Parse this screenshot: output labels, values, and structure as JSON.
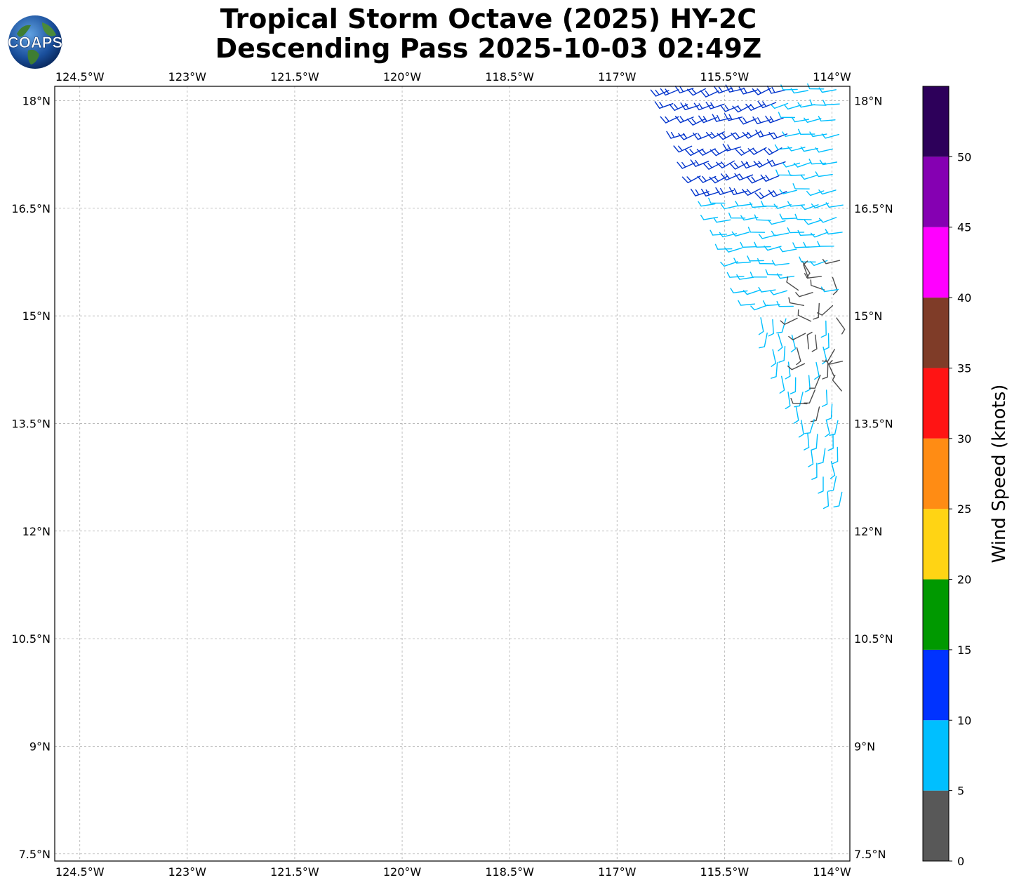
{
  "title_line1": "Tropical Storm Octave (2025) HY-2C",
  "title_line2": "Descending Pass 2025-10-03 02:49Z",
  "logo": {
    "text": "COAPS",
    "icon": "globe-icon"
  },
  "map": {
    "lon_range": [
      -124.85,
      -113.75
    ],
    "lat_range": [
      7.4,
      18.2
    ],
    "grid": true,
    "grid_style": "dashed",
    "lon_ticks": [
      {
        "value": -124.5,
        "label": "124.5°W"
      },
      {
        "value": -123.0,
        "label": "123°W"
      },
      {
        "value": -121.5,
        "label": "121.5°W"
      },
      {
        "value": -120.0,
        "label": "120°W"
      },
      {
        "value": -118.5,
        "label": "118.5°W"
      },
      {
        "value": -117.0,
        "label": "117°W"
      },
      {
        "value": -115.5,
        "label": "115.5°W"
      },
      {
        "value": -114.0,
        "label": "114°W"
      }
    ],
    "lat_ticks": [
      {
        "value": 18.0,
        "label": "18°N"
      },
      {
        "value": 16.5,
        "label": "16.5°N"
      },
      {
        "value": 15.0,
        "label": "15°N"
      },
      {
        "value": 13.5,
        "label": "13.5°N"
      },
      {
        "value": 12.0,
        "label": "12°N"
      },
      {
        "value": 10.5,
        "label": "10.5°N"
      },
      {
        "value": 9.0,
        "label": "9°N"
      },
      {
        "value": 7.5,
        "label": "7.5°N"
      }
    ]
  },
  "colorbar": {
    "label": "Wind Speed (knots)",
    "bounds": [
      0,
      5,
      10,
      15,
      20,
      25,
      30,
      35,
      40,
      45,
      50,
      55
    ],
    "colors": [
      "#585858",
      "#00bfff",
      "#0033ff",
      "#009900",
      "#ffd414",
      "#ff8c14",
      "#ff1414",
      "#7f3c28",
      "#ff00ff",
      "#8500b2",
      "#2d005a"
    ],
    "tick_labels": [
      "0",
      "5",
      "10",
      "15",
      "20",
      "25",
      "30",
      "35",
      "40",
      "45",
      "50"
    ]
  },
  "wind_barbs": {
    "legend_units": "knots",
    "swath_colors": {
      "calm": "#4d4d4d",
      "light": "#00bfff",
      "moderate": "#0033cc"
    },
    "regions": [
      {
        "name": "north-swath",
        "speed_knots_range": [
          10,
          15
        ],
        "lat_range": [
          16.3,
          18.2
        ],
        "lon_range": [
          -116.3,
          -113.75
        ]
      },
      {
        "name": "central-swath",
        "speed_knots_range": [
          5,
          10
        ],
        "lat_range": [
          12.4,
          16.6
        ],
        "lon_range": [
          -115.6,
          -113.75
        ]
      },
      {
        "name": "calm-core",
        "speed_knots_range": [
          0,
          5
        ],
        "lat_range": [
          13.6,
          15.8
        ],
        "lon_range": [
          -114.6,
          -113.75
        ]
      }
    ]
  }
}
